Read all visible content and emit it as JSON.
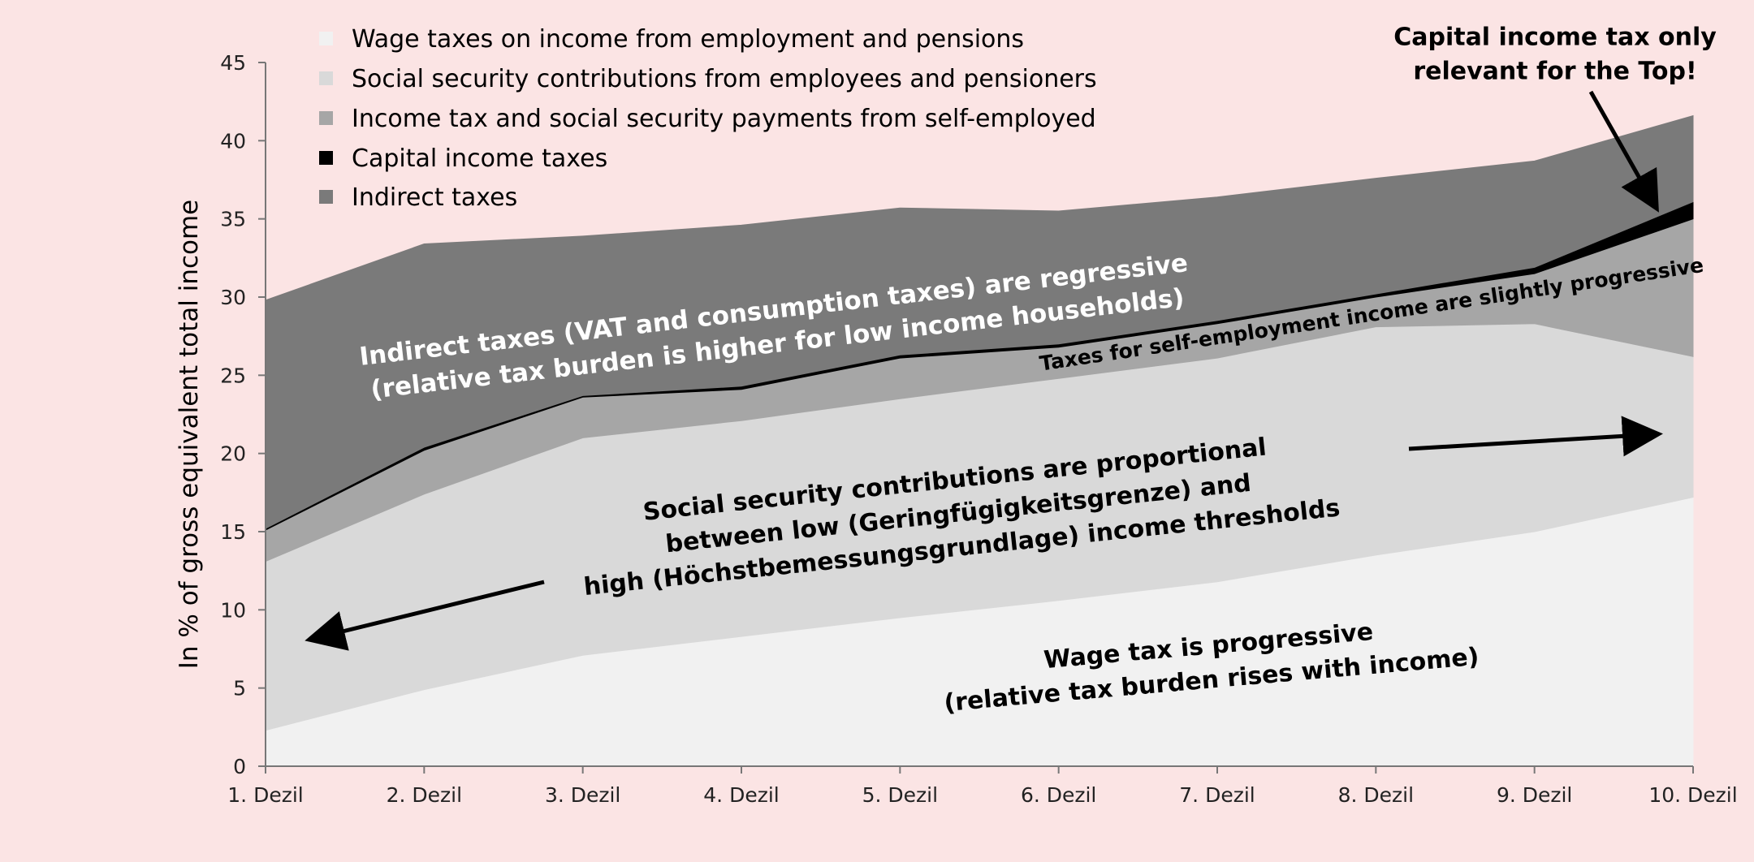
{
  "chart_data": {
    "type": "area",
    "stacked": true,
    "title": "",
    "xlabel": "",
    "ylabel": "In % of gross equivalent total income",
    "ylim": [
      0,
      45
    ],
    "yticks": [
      0,
      5,
      10,
      15,
      20,
      25,
      30,
      35,
      40,
      45
    ],
    "grid": false,
    "legend_position": "top-left",
    "categories": [
      "1. Dezil",
      "2. Dezil",
      "3. Dezil",
      "4. Dezil",
      "5. Dezil",
      "6. Dezil",
      "7. Dezil",
      "8. Dezil",
      "9. Dezil",
      "10. Dezil"
    ],
    "series": [
      {
        "name": "Wage taxes on income from employment and pensions",
        "color": "#f1f1f1",
        "values": [
          2.3,
          4.9,
          7.1,
          8.3,
          9.5,
          10.6,
          11.8,
          13.5,
          15.0,
          17.2
        ]
      },
      {
        "name": "Social security contributions from employees and pensioners",
        "color": "#d9d9d9",
        "values": [
          10.8,
          12.5,
          13.9,
          13.8,
          14.0,
          14.2,
          14.3,
          14.6,
          13.3,
          9.0
        ]
      },
      {
        "name": "Income tax and social security payments from self-employed",
        "color": "#a6a6a6",
        "values": [
          2.0,
          2.8,
          2.6,
          2.0,
          2.6,
          2.0,
          2.2,
          1.9,
          3.2,
          8.8
        ]
      },
      {
        "name": "Capital income taxes",
        "color": "#000000",
        "values": [
          0.1,
          0.2,
          0.1,
          0.2,
          0.2,
          0.2,
          0.2,
          0.2,
          0.4,
          1.1
        ]
      },
      {
        "name": "Indirect taxes",
        "color": "#7a7a7a",
        "values": [
          14.6,
          13.0,
          10.2,
          10.3,
          9.4,
          8.5,
          7.9,
          7.4,
          6.8,
          5.5
        ]
      }
    ],
    "annotations": [
      {
        "id": "indirect",
        "lines": [
          "Indirect taxes (VAT and consumption taxes) are regressive",
          "(relative tax burden is higher for low income households)"
        ],
        "color": "#ffffff"
      },
      {
        "id": "selfemp",
        "lines": [
          "Taxes for self-employment income are slightly progressive"
        ],
        "color": "#000000"
      },
      {
        "id": "social",
        "lines": [
          "Social security contributions are proportional",
          "between low (Geringfügigkeitsgrenze) and",
          "high (Höchstbemessungsgrundlage) income thresholds"
        ],
        "color": "#000000"
      },
      {
        "id": "wage",
        "lines": [
          "Wage tax is progressive",
          "(relative tax burden rises with income)"
        ],
        "color": "#000000"
      },
      {
        "id": "capital",
        "lines": [
          "Capital income tax only",
          "relevant for the Top!"
        ],
        "color": "#000000"
      }
    ]
  }
}
